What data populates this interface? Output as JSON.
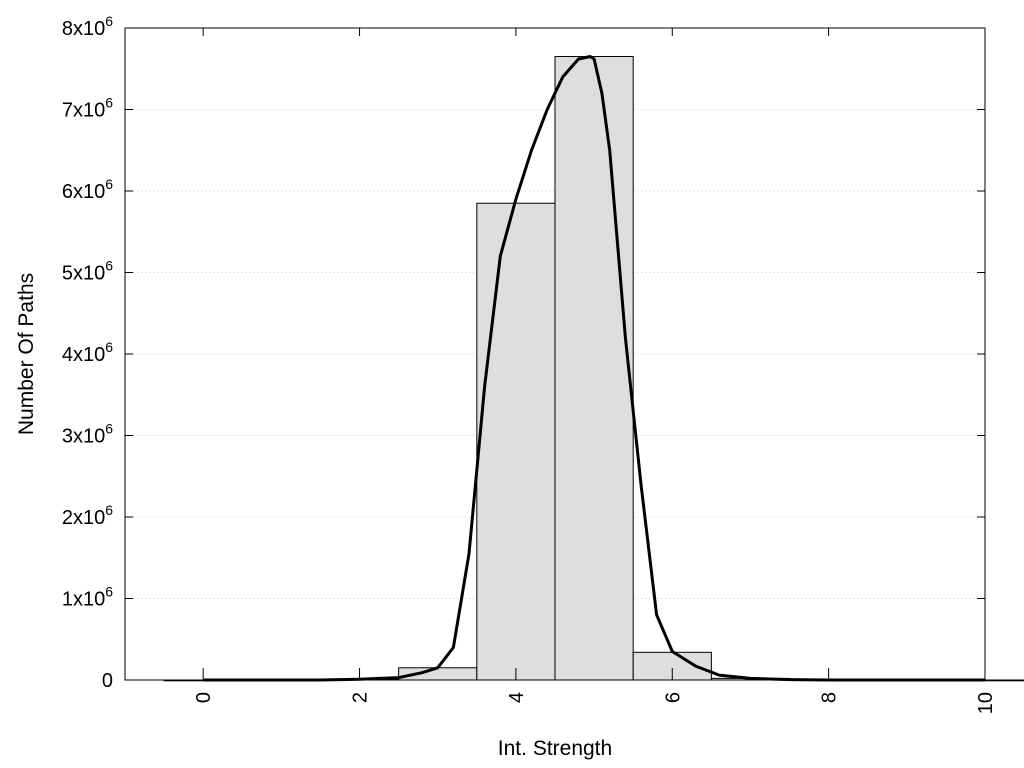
{
  "chart_data": {
    "type": "bar",
    "title": "",
    "xlabel": "Int. Strength",
    "ylabel": "Number Of Paths",
    "xlim": [
      -1,
      10
    ],
    "ylim": [
      0,
      8000000
    ],
    "x_ticks": [
      0,
      2,
      4,
      6,
      8,
      10
    ],
    "y_ticks": [
      {
        "value": 0,
        "base": "0",
        "exp": ""
      },
      {
        "value": 1000000,
        "base": "1x10",
        "exp": "6"
      },
      {
        "value": 2000000,
        "base": "2x10",
        "exp": "6"
      },
      {
        "value": 3000000,
        "base": "3x10",
        "exp": "6"
      },
      {
        "value": 4000000,
        "base": "4x10",
        "exp": "6"
      },
      {
        "value": 5000000,
        "base": "5x10",
        "exp": "6"
      },
      {
        "value": 6000000,
        "base": "6x10",
        "exp": "6"
      },
      {
        "value": 7000000,
        "base": "7x10",
        "exp": "6"
      },
      {
        "value": 8000000,
        "base": "8x10",
        "exp": "6"
      }
    ],
    "grid": "horizontal dotted",
    "bars": {
      "bin_width": 1,
      "centers": [
        0,
        1,
        2,
        3,
        4,
        5,
        6,
        7,
        8,
        9,
        10
      ],
      "values": [
        0,
        0,
        10000,
        150000,
        5850000,
        7650000,
        340000,
        20000,
        5000,
        0,
        0
      ],
      "fill": "#dedede",
      "stroke": "#000000"
    },
    "curve": {
      "stroke": "#000000",
      "x": [
        0,
        0.5,
        1,
        1.5,
        2,
        2.5,
        2.8,
        3.0,
        3.2,
        3.4,
        3.6,
        3.8,
        4.0,
        4.2,
        4.4,
        4.6,
        4.8,
        4.95,
        5.0,
        5.1,
        5.2,
        5.4,
        5.6,
        5.8,
        6.0,
        6.3,
        6.6,
        7.0,
        7.5,
        8,
        8.5,
        9,
        9.5,
        10
      ],
      "y": [
        0,
        0,
        0,
        0,
        10000,
        30000,
        90000,
        150000,
        400000,
        1550000,
        3600000,
        5200000,
        5900000,
        6500000,
        7000000,
        7400000,
        7620000,
        7650000,
        7620000,
        7200000,
        6500000,
        4200000,
        2400000,
        800000,
        350000,
        170000,
        60000,
        20000,
        5000,
        0,
        0,
        0,
        0,
        0
      ]
    }
  }
}
